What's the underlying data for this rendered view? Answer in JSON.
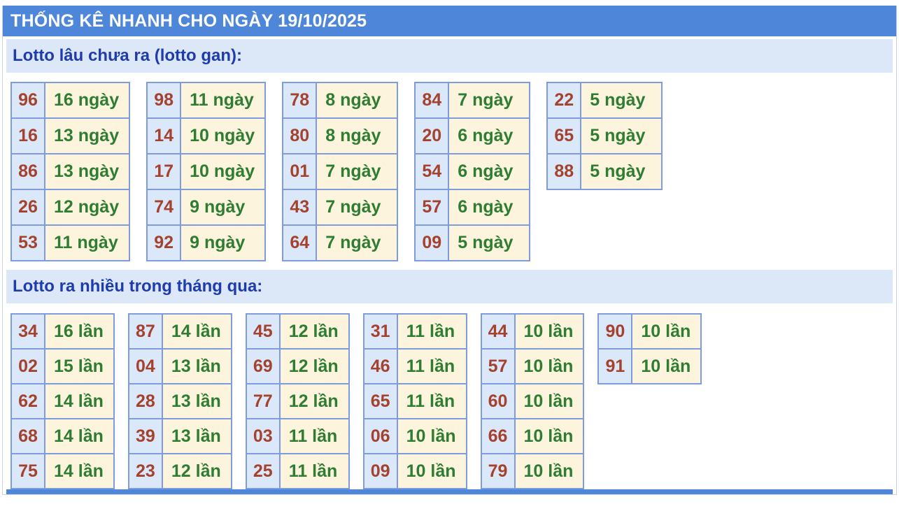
{
  "title": "THỐNG KÊ NHANH CHO NGÀY 19/10/2025",
  "colors": {
    "header_bg": "#4e87d9",
    "header_text": "#ffffff",
    "section_bg": "#dce8f8",
    "section_text": "#1e3cae",
    "number_text": "#a5422d",
    "count_text": "#2e7d32",
    "number_cell_bg": "#dbe8fa",
    "count_cell_bg": "#fcf4dd",
    "cell_border": "#7e9cdb"
  },
  "sections": [
    {
      "heading": "Lotto lâu chưa ra (lotto gan):",
      "unit": "ngày",
      "tables": [
        [
          {
            "number": "96",
            "count": "16 ngày"
          },
          {
            "number": "16",
            "count": "13 ngày"
          },
          {
            "number": "86",
            "count": "13 ngày"
          },
          {
            "number": "26",
            "count": "12 ngày"
          },
          {
            "number": "53",
            "count": "11 ngày"
          }
        ],
        [
          {
            "number": "98",
            "count": "11 ngày"
          },
          {
            "number": "14",
            "count": "10 ngày"
          },
          {
            "number": "17",
            "count": "10 ngày"
          },
          {
            "number": "74",
            "count": "9 ngày"
          },
          {
            "number": "92",
            "count": "9 ngày"
          }
        ],
        [
          {
            "number": "78",
            "count": "8 ngày"
          },
          {
            "number": "80",
            "count": "8 ngày"
          },
          {
            "number": "01",
            "count": "7 ngày"
          },
          {
            "number": "43",
            "count": "7 ngày"
          },
          {
            "number": "64",
            "count": "7 ngày"
          }
        ],
        [
          {
            "number": "84",
            "count": "7 ngày"
          },
          {
            "number": "20",
            "count": "6 ngày"
          },
          {
            "number": "54",
            "count": "6 ngày"
          },
          {
            "number": "57",
            "count": "6 ngày"
          },
          {
            "number": "09",
            "count": "5 ngày"
          }
        ],
        [
          {
            "number": "22",
            "count": "5 ngày"
          },
          {
            "number": "65",
            "count": "5 ngày"
          },
          {
            "number": "88",
            "count": "5 ngày"
          }
        ]
      ]
    },
    {
      "heading": "Lotto ra nhiều trong tháng qua:",
      "unit": "lần",
      "tables": [
        [
          {
            "number": "34",
            "count": "16 lần"
          },
          {
            "number": "02",
            "count": "15 lần"
          },
          {
            "number": "62",
            "count": "14 lần"
          },
          {
            "number": "68",
            "count": "14 lần"
          },
          {
            "number": "75",
            "count": "14 lần"
          }
        ],
        [
          {
            "number": "87",
            "count": "14 lần"
          },
          {
            "number": "04",
            "count": "13 lần"
          },
          {
            "number": "28",
            "count": "13 lần"
          },
          {
            "number": "39",
            "count": "13 lần"
          },
          {
            "number": "23",
            "count": "12 lần"
          }
        ],
        [
          {
            "number": "45",
            "count": "12 lần"
          },
          {
            "number": "69",
            "count": "12 lần"
          },
          {
            "number": "77",
            "count": "12 lần"
          },
          {
            "number": "03",
            "count": "11 lần"
          },
          {
            "number": "25",
            "count": "11 lần"
          }
        ],
        [
          {
            "number": "31",
            "count": "11 lần"
          },
          {
            "number": "46",
            "count": "11 lần"
          },
          {
            "number": "65",
            "count": "11 lần"
          },
          {
            "number": "06",
            "count": "10 lần"
          },
          {
            "number": "09",
            "count": "10 lần"
          }
        ],
        [
          {
            "number": "44",
            "count": "10 lần"
          },
          {
            "number": "57",
            "count": "10 lần"
          },
          {
            "number": "60",
            "count": "10 lần"
          },
          {
            "number": "66",
            "count": "10 lần"
          },
          {
            "number": "79",
            "count": "10 lần"
          }
        ],
        [
          {
            "number": "90",
            "count": "10 lần"
          },
          {
            "number": "91",
            "count": "10 lần"
          }
        ]
      ]
    }
  ]
}
